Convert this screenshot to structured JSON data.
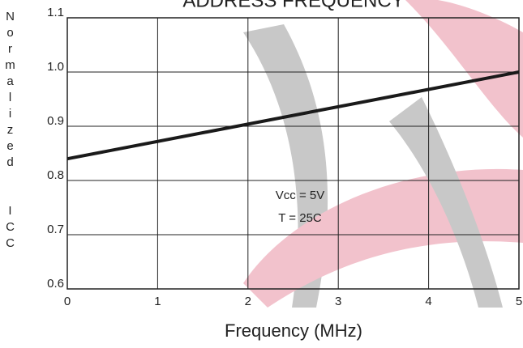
{
  "chart_data": {
    "type": "line",
    "title": "ADDRESS FREQUENCY",
    "x_label": "Frequency (MHz)",
    "y_label": "Normalized  ICC",
    "x": [
      0,
      5
    ],
    "series": [
      {
        "name": "ICC",
        "color": "#1a1a1a",
        "values": [
          0.84,
          1.0
        ]
      }
    ],
    "xlim": [
      0,
      5
    ],
    "xticks": [
      0,
      1,
      2,
      3,
      4,
      5
    ],
    "ylim": [
      0.6,
      1.1
    ],
    "yticks": [
      1.1,
      {
        "value": 1,
        "label": "1.0"
      },
      0.9,
      0.8,
      0.7,
      0.6
    ],
    "grid": true,
    "annotations": [
      "Vcc = 5V",
      "T = 25C"
    ]
  }
}
